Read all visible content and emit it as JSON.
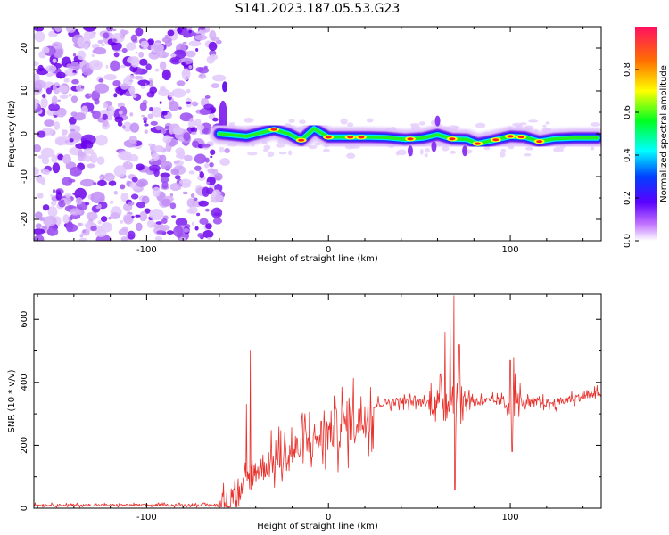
{
  "title": "S141.2023.187.05.53.G23",
  "chart_data": [
    {
      "type": "heatmap",
      "xlabel": "Height of straight line (km)",
      "ylabel": "Frequency (Hz)",
      "xlim": [
        -162,
        150
      ],
      "ylim": [
        -25,
        25
      ],
      "xticks": [
        -100,
        0,
        100
      ],
      "yticks": [
        -20,
        -10,
        0,
        10,
        20
      ],
      "colorbar": {
        "label": "Normalized spectral amplitude",
        "range": [
          0.0,
          1.0
        ],
        "ticks": [
          0.0,
          0.2,
          0.4,
          0.6,
          0.8
        ]
      },
      "ridge": [
        {
          "x": -60,
          "y": 0
        },
        {
          "x": -45,
          "y": -0.6
        },
        {
          "x": -30,
          "y": 1.0
        },
        {
          "x": -22,
          "y": 0
        },
        {
          "x": -15,
          "y": -1.5
        },
        {
          "x": -8,
          "y": 1.2
        },
        {
          "x": 0,
          "y": -0.8
        },
        {
          "x": 12,
          "y": -0.8
        },
        {
          "x": 22,
          "y": -0.8
        },
        {
          "x": 32,
          "y": -0.9
        },
        {
          "x": 42,
          "y": -1.3
        },
        {
          "x": 52,
          "y": -1.0
        },
        {
          "x": 60,
          "y": -0.2
        },
        {
          "x": 68,
          "y": -1.2
        },
        {
          "x": 76,
          "y": -1.3
        },
        {
          "x": 82,
          "y": -2.3
        },
        {
          "x": 90,
          "y": -1.6
        },
        {
          "x": 100,
          "y": -0.6
        },
        {
          "x": 108,
          "y": -0.8
        },
        {
          "x": 116,
          "y": -1.8
        },
        {
          "x": 124,
          "y": -1.2
        },
        {
          "x": 135,
          "y": -1.0
        },
        {
          "x": 148,
          "y": -1.0
        }
      ],
      "noise_region_x": [
        -162,
        -60
      ]
    },
    {
      "type": "line",
      "xlabel": "Height of straight line (km)",
      "ylabel": "SNR (10 * v/v)",
      "xlim": [
        -162,
        150
      ],
      "ylim": [
        0,
        680
      ],
      "xticks": [
        -100,
        0,
        100
      ],
      "yticks": [
        0,
        200,
        400,
        600
      ],
      "color": "#e8322d",
      "envelope": [
        {
          "x": -162,
          "y": 10
        },
        {
          "x": -60,
          "y": 10
        },
        {
          "x": -50,
          "y": 30
        },
        {
          "x": -45,
          "y": 80
        },
        {
          "x": -40,
          "y": 120
        },
        {
          "x": -30,
          "y": 150
        },
        {
          "x": -20,
          "y": 180
        },
        {
          "x": -10,
          "y": 210
        },
        {
          "x": 0,
          "y": 240
        },
        {
          "x": 10,
          "y": 270
        },
        {
          "x": 20,
          "y": 300
        },
        {
          "x": 28,
          "y": 335
        },
        {
          "x": 40,
          "y": 340
        },
        {
          "x": 55,
          "y": 335
        },
        {
          "x": 65,
          "y": 345
        },
        {
          "x": 75,
          "y": 345
        },
        {
          "x": 85,
          "y": 340
        },
        {
          "x": 95,
          "y": 340
        },
        {
          "x": 110,
          "y": 335
        },
        {
          "x": 125,
          "y": 335
        },
        {
          "x": 135,
          "y": 350
        },
        {
          "x": 150,
          "y": 365
        }
      ],
      "spikes": [
        {
          "x": -43,
          "y": 500
        },
        {
          "x": -45,
          "y": 330
        },
        {
          "x": 64,
          "y": 560
        },
        {
          "x": 67,
          "y": 600
        },
        {
          "x": 69,
          "y": 675
        },
        {
          "x": 69.5,
          "y": 60
        },
        {
          "x": 72,
          "y": 520
        },
        {
          "x": 100,
          "y": 470
        },
        {
          "x": 102,
          "y": 480
        },
        {
          "x": 101,
          "y": 180
        }
      ]
    }
  ]
}
